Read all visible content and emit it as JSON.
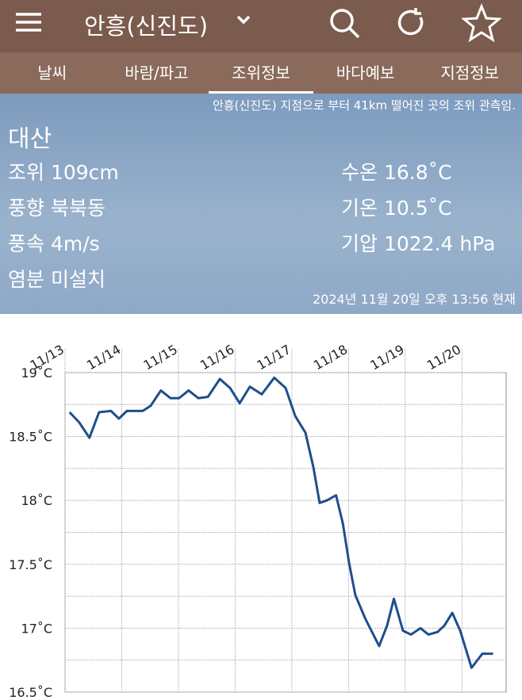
{
  "header": {
    "title": "안흥(신진도)"
  },
  "tabs": [
    "날씨",
    "바람/파고",
    "조위정보",
    "바다예보",
    "지점정보"
  ],
  "info": {
    "notice": "안흥(신진도) 지점으로 부터 41km 떨어진 곳의 조위 관측임.",
    "station": "대산",
    "tide": "조위 109cm",
    "wind_dir": "풍향 북북동",
    "wind_speed": "풍속 4m/s",
    "salinity": "염분 미설치",
    "water_temp": "수온 16.8˚C",
    "air_temp": "기온 10.5˚C",
    "pressure": "기압 1022.4 hPa",
    "timestamp": "2024년 11월 20일 오후 13:56 현재"
  },
  "chart_data": {
    "type": "line",
    "color": "#1f4e8c",
    "grid": true,
    "x": [
      0.08,
      0.25,
      0.43,
      0.6,
      0.81,
      0.95,
      1.09,
      1.37,
      1.51,
      1.69,
      1.86,
      2.01,
      2.18,
      2.35,
      2.52,
      2.73,
      2.91,
      3.08,
      3.26,
      3.47,
      3.69,
      3.89,
      4.06,
      4.24,
      4.38,
      4.49,
      4.62,
      4.78,
      4.9,
      5.01,
      5.12,
      5.29,
      5.54,
      5.68,
      5.8,
      5.96,
      6.1,
      6.27,
      6.41,
      6.57,
      6.69,
      6.83,
      6.97,
      7.17,
      7.36,
      7.55
    ],
    "values": [
      18.69,
      18.61,
      18.49,
      18.69,
      18.7,
      18.64,
      18.7,
      18.7,
      18.74,
      18.86,
      18.8,
      18.8,
      18.86,
      18.8,
      18.81,
      18.95,
      18.88,
      18.76,
      18.89,
      18.83,
      18.96,
      18.88,
      18.66,
      18.53,
      18.26,
      17.98,
      18.0,
      18.04,
      17.82,
      17.51,
      17.26,
      17.08,
      16.86,
      17.02,
      17.23,
      16.98,
      16.95,
      17.0,
      16.95,
      16.97,
      17.02,
      17.12,
      16.98,
      16.69,
      16.8,
      16.8
    ],
    "xlim": [
      0,
      7.78
    ],
    "xticks": [
      {
        "value": 0,
        "label": "11/13"
      },
      {
        "value": 1,
        "label": "11/14"
      },
      {
        "value": 2,
        "label": "11/15"
      },
      {
        "value": 3,
        "label": "11/16"
      },
      {
        "value": 4,
        "label": "11/17"
      },
      {
        "value": 5,
        "label": "11/18"
      },
      {
        "value": 6,
        "label": "11/19"
      },
      {
        "value": 7,
        "label": "11/20"
      }
    ],
    "ylim": [
      16.5,
      19
    ],
    "yticks": [
      {
        "value": 16.5,
        "label": "16.5˚C"
      },
      {
        "value": 17,
        "label": "17˚C"
      },
      {
        "value": 17.5,
        "label": "17.5˚C"
      },
      {
        "value": 18,
        "label": "18˚C"
      },
      {
        "value": 18.5,
        "label": "18.5˚C"
      },
      {
        "value": 19,
        "label": "19˚C"
      }
    ]
  }
}
